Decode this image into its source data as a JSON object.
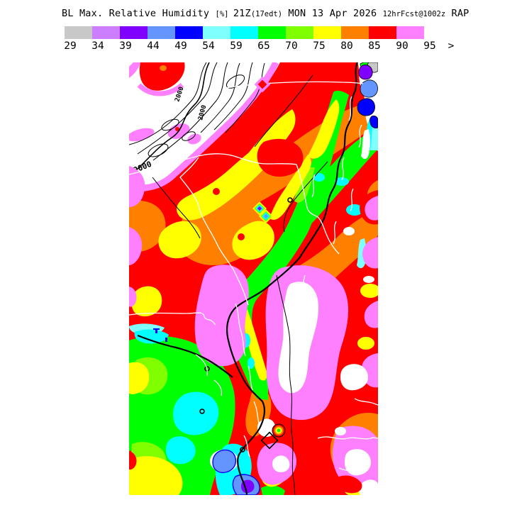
{
  "title": {
    "segments": [
      {
        "text": "BL Max. Relative Humidity ",
        "size": "large"
      },
      {
        "text": "[%] ",
        "size": "small"
      },
      {
        "text": "21Z",
        "size": "large"
      },
      {
        "text": "(17edt)",
        "size": "small"
      },
      {
        "text": " MON 13 Apr 2026 ",
        "size": "large"
      },
      {
        "text": "12hrFcst@1002z",
        "size": "small"
      },
      {
        "text": " RAP",
        "size": "large"
      }
    ]
  },
  "legend": {
    "colors": [
      "#c8c8c8",
      "#cc7eff",
      "#7f00ff",
      "#6495ff",
      "#0000ff",
      "#80ffff",
      "#00ffff",
      "#00ff00",
      "#7fff00",
      "#ffff00",
      "#ff7f00",
      "#ff0000",
      "#ff80ff"
    ],
    "labels": [
      "29",
      "34",
      "39",
      "44",
      "49",
      "54",
      "59",
      "65",
      "70",
      "75",
      "80",
      "85",
      "90",
      "95"
    ],
    "overflow_label": ">"
  },
  "palette": {
    "gray": "#c8c8c8",
    "violet": "#cc7eff",
    "purple": "#7f00ff",
    "cornflower": "#6495ff",
    "blue": "#0000ff",
    "palecyan": "#80ffff",
    "cyan": "#00ffff",
    "green": "#00ff00",
    "chartreuse": "#7fff00",
    "yellow": "#ffff00",
    "orange": "#ff7f00",
    "red": "#ff0000",
    "pink": "#ff80ff",
    "white": "#ffffff",
    "black": "#000000"
  },
  "map": {
    "contour_labels": [
      {
        "text": "2000"
      },
      {
        "text": "2000"
      },
      {
        "text": "2000"
      }
    ]
  }
}
